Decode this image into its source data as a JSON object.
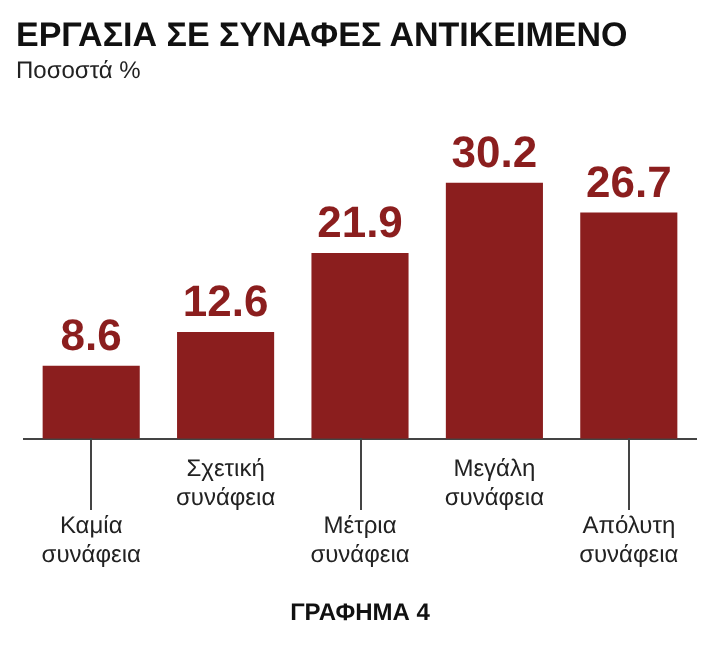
{
  "chart_data": {
    "type": "bar",
    "title": "ΕΡΓΑΣΙΑ ΣΕ ΣΥΝΑΦΕΣ ΑΝΤΙΚΕΙΜΕΝΟ",
    "subtitle": "Ποσοστά %",
    "categories": [
      "Καμία συνάφεια",
      "Σχετική συνάφεια",
      "Μέτρια συνάφεια",
      "Μεγάλη συνάφεια",
      "Απόλυτη συνάφεια"
    ],
    "values": [
      8.6,
      12.6,
      21.9,
      30.2,
      26.7
    ],
    "color": "#8b1e1e",
    "data_labels": true,
    "grid": false,
    "legend": false,
    "annotations": [
      "ΓΡΑΦΗΜΑ 4"
    ]
  }
}
